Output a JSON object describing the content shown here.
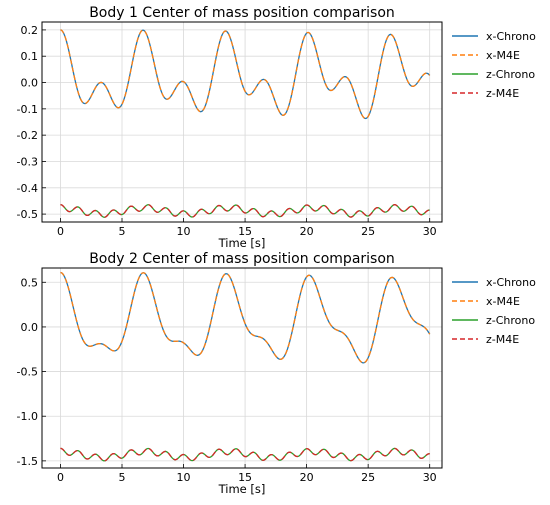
{
  "chart_data": [
    {
      "type": "line",
      "title": "Body 1 Center of mass position comparison",
      "xlabel": "Time [s]",
      "ylabel": "",
      "xlim": [
        -1.5,
        31
      ],
      "ylim": [
        -0.53,
        0.23
      ],
      "xticks": [
        0,
        5,
        10,
        15,
        20,
        25,
        30
      ],
      "yticks": [
        -0.5,
        -0.4,
        -0.3,
        -0.2,
        -0.1,
        0.0,
        0.1,
        0.2
      ],
      "ytick_labels": [
        "-0.5",
        "-0.4",
        "-0.3",
        "-0.2",
        "-0.1",
        "0.0",
        "0.1",
        "0.2"
      ],
      "grid": true,
      "legend": "outside-right",
      "x_signal": {
        "mean": 0.015,
        "a1": 0.1,
        "f1": 0.146,
        "a2": 0.085,
        "f2": 0.3,
        "phase2": 0.0
      },
      "z_signal": {
        "mean": -0.488,
        "a1": 0.012,
        "f1": 0.146,
        "a2": 0.012,
        "f2": 0.7
      },
      "series": [
        {
          "name": "x-Chrono",
          "color": "#1f77b4",
          "style": "solid",
          "signal": "x"
        },
        {
          "name": "x-M4E",
          "color": "#ff7f0e",
          "style": "dashed",
          "signal": "x"
        },
        {
          "name": "z-Chrono",
          "color": "#2ca02c",
          "style": "solid",
          "signal": "z"
        },
        {
          "name": "z-M4E",
          "color": "#d62728",
          "style": "dashed",
          "signal": "z"
        }
      ]
    },
    {
      "type": "line",
      "title": "Body 2 Center of mass position comparison",
      "xlabel": "Time [s]",
      "ylabel": "",
      "xlim": [
        -1.5,
        31
      ],
      "ylim": [
        -1.58,
        0.66
      ],
      "xticks": [
        0,
        5,
        10,
        15,
        20,
        25,
        30
      ],
      "yticks": [
        -1.5,
        -1.0,
        -0.5,
        0.0,
        0.5
      ],
      "ytick_labels": [
        "-1.5",
        "-1.0",
        "-0.5",
        "0.0",
        "0.5"
      ],
      "grid": true,
      "legend": "outside-right",
      "x_signal": {
        "mean": 0.05,
        "a1": 0.4,
        "f1": 0.146,
        "a2": 0.16,
        "f2": 0.3,
        "phase2": 0.0
      },
      "z_signal": {
        "mean": -1.43,
        "a1": 0.035,
        "f1": 0.146,
        "a2": 0.035,
        "f2": 0.7
      },
      "series": [
        {
          "name": "x-Chrono",
          "color": "#1f77b4",
          "style": "solid",
          "signal": "x"
        },
        {
          "name": "x-M4E",
          "color": "#ff7f0e",
          "style": "dashed",
          "signal": "x"
        },
        {
          "name": "z-Chrono",
          "color": "#2ca02c",
          "style": "solid",
          "signal": "z"
        },
        {
          "name": "z-M4E",
          "color": "#d62728",
          "style": "dashed",
          "signal": "z"
        }
      ]
    }
  ]
}
